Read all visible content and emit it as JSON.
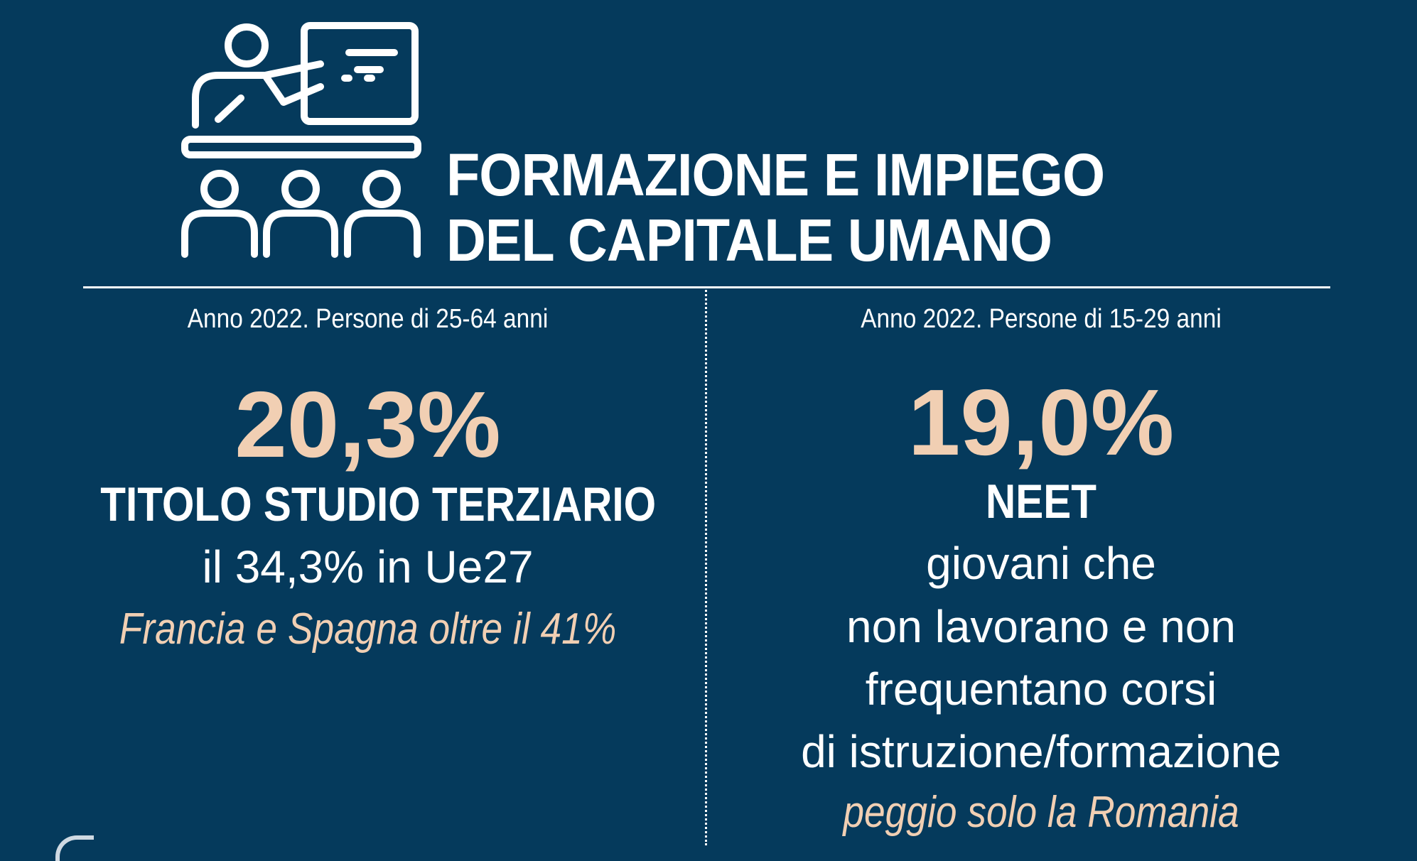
{
  "header": {
    "title_line1": "FORMAZIONE E IMPIEGO",
    "title_line2": "DEL CAPITALE UMANO",
    "icon": "teacher-classroom-icon"
  },
  "left": {
    "subtitle": "Anno 2022. Persone di 25-64 anni",
    "value": "20,3%",
    "label": "TITOLO STUDIO TERZIARIO",
    "comparison": "il 34,3% in Ue27",
    "note": "Francia e Spagna oltre il 41%"
  },
  "right": {
    "subtitle": "Anno 2022. Persone di 15-29 anni",
    "value": "19,0%",
    "label": "NEET",
    "desc_line1": "giovani che",
    "desc_line2": "non lavorano e non",
    "desc_line3": "frequentano corsi",
    "desc_line4": "di istruzione/formazione",
    "note": "peggio solo la Romania"
  },
  "colors": {
    "background": "#053a5c",
    "accent": "#f1cfb3",
    "text": "#ffffff"
  }
}
